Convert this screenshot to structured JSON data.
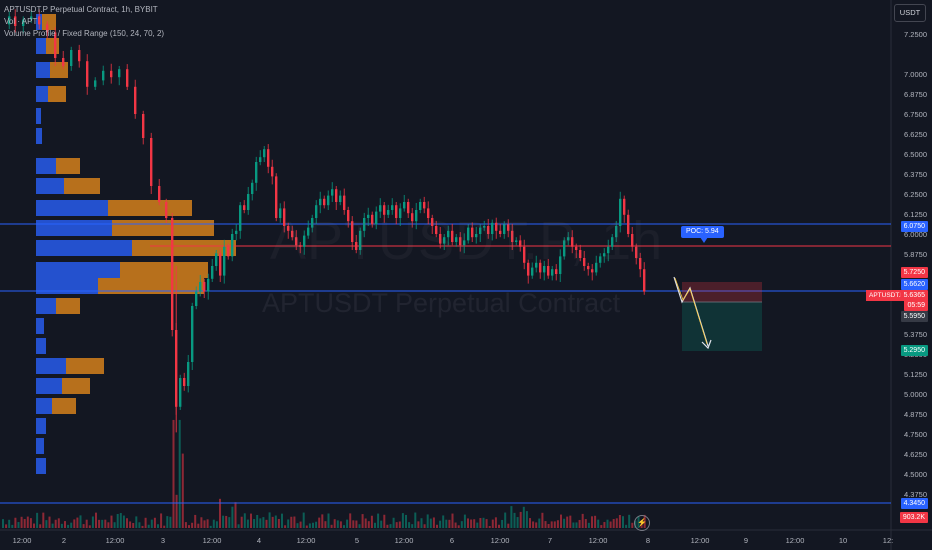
{
  "legend": {
    "title": "APTUSDT.P Perpetual Contract, 1h, BYBIT",
    "vol": "Vol · APT",
    "volume_profile": "Volume Profile / Fixed Range (150, 24, 70, 2)"
  },
  "currency_button": "USDT",
  "watermark": {
    "ticker": "APTUSDT.P, 1h",
    "name": "APTUSDT Perpetual Contract"
  },
  "poc_label": "POC: 5.94",
  "symbol_tag": "APTUSDT.P",
  "y_axis_ticks": [
    "7.2500",
    "7.0000",
    "6.8750",
    "6.7500",
    "6.6250",
    "6.5000",
    "6.3750",
    "6.2500",
    "6.1250",
    "6.0000",
    "5.8750",
    "5.6250",
    "5.3750",
    "5.2500",
    "5.1250",
    "5.0000",
    "4.8750",
    "4.7500",
    "4.6250",
    "4.5000",
    "4.3750"
  ],
  "price_tags": [
    {
      "text": "6.0750",
      "color": "#2962ff"
    },
    {
      "text": "5.7250",
      "color": "#f23645"
    },
    {
      "text": "5.6620",
      "color": "#2962ff"
    },
    {
      "text": "5.6365",
      "color": "#f23645"
    },
    {
      "text": "05:59",
      "color": "#f23645"
    },
    {
      "text": "5.5950",
      "color": "#363a45"
    },
    {
      "text": "5.2950",
      "color": "#089981"
    },
    {
      "text": "4.3450",
      "color": "#2962ff"
    },
    {
      "text": "903.2K",
      "color": "#f23645"
    }
  ],
  "x_axis_ticks": [
    "12:00",
    "2",
    "12:00",
    "3",
    "12:00",
    "4",
    "12:00",
    "5",
    "12:00",
    "6",
    "12:00",
    "7",
    "12:00",
    "8",
    "12:00",
    "9",
    "12:00",
    "10",
    "12:"
  ],
  "colors": {
    "up": "#089981",
    "down": "#f23645",
    "line_blue": "#2962ff",
    "poc_red": "#f23645",
    "profile_blue": "#2962ff",
    "profile_orange": "#f7931a"
  }
}
